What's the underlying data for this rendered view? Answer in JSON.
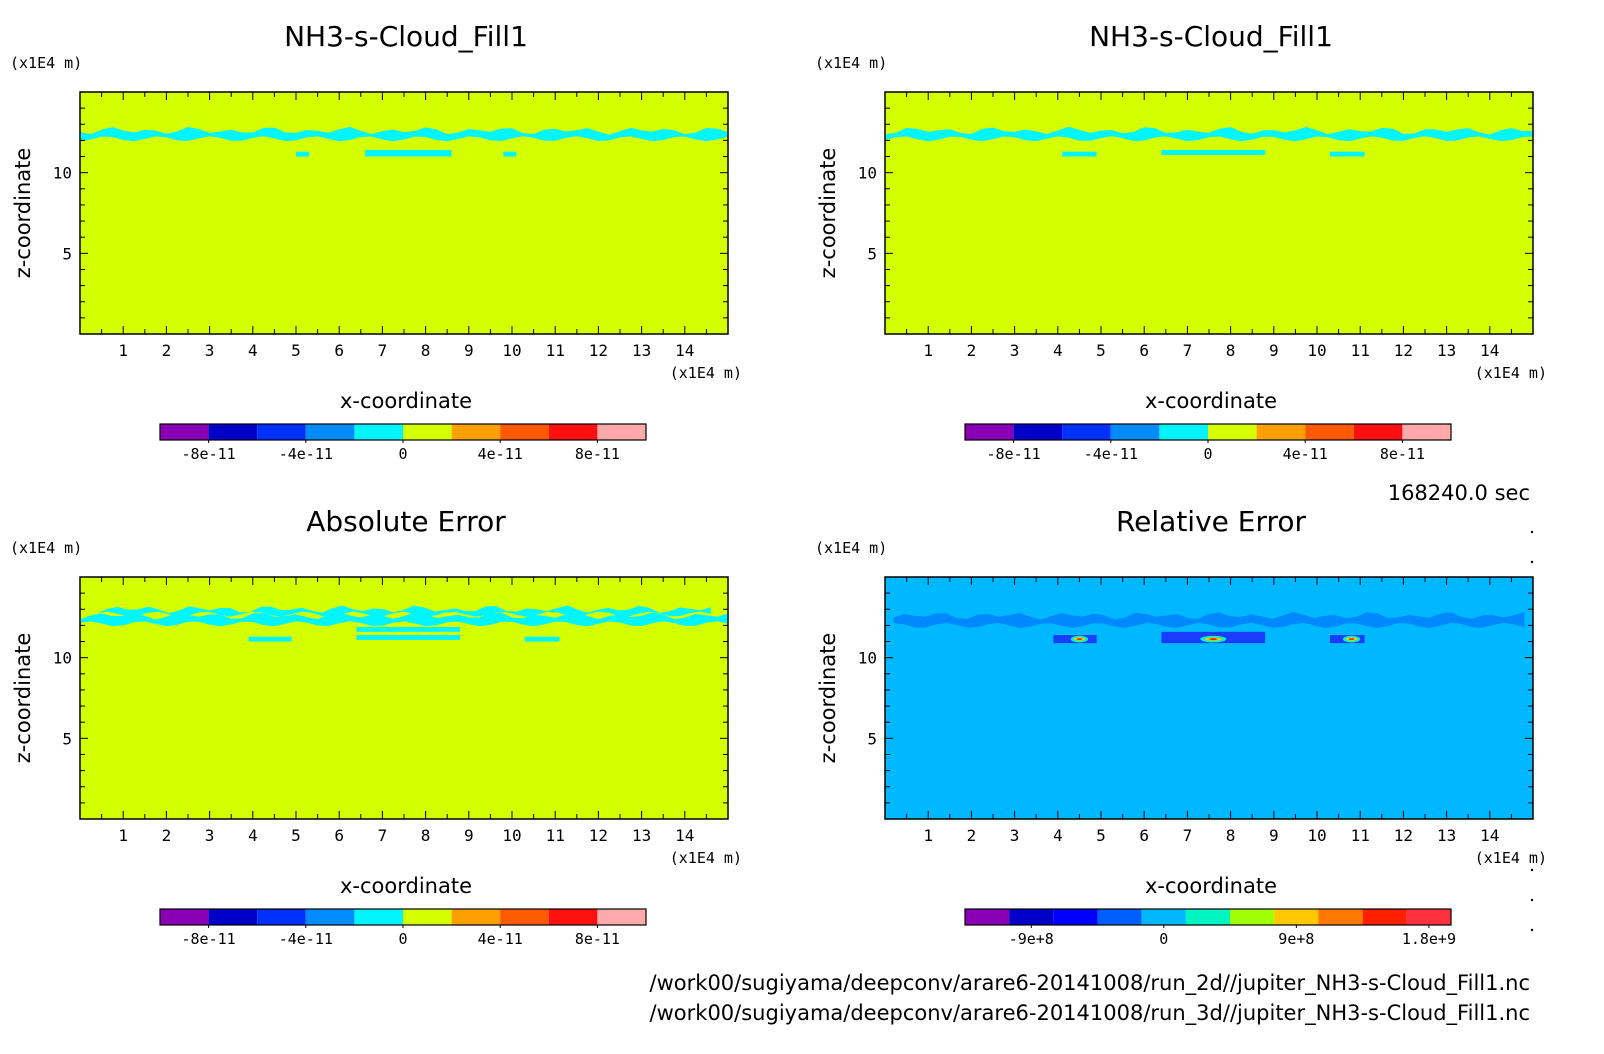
{
  "time_label": "168240.0 sec",
  "files": [
    "/work00/sugiyama/deepconv/arare6-20141008/run_2d//jupiter_NH3-s-Cloud_Fill1.nc",
    "/work00/sugiyama/deepconv/arare6-20141008/run_3d//jupiter_NH3-s-Cloud_Fill1.nc"
  ],
  "colors": {
    "field_background": "#d4ff00",
    "cloud_band": "#00f5ff",
    "relative_background": "#00b8ff",
    "relative_band": "#0088ff",
    "relative_deep": "#1a3cff"
  },
  "chart_data": [
    {
      "type": "heatmap",
      "title": "NH3-s-Cloud_Fill1",
      "xlabel": "x-coordinate",
      "ylabel": "z-coordinate",
      "xunit": "(x1E4 m)",
      "yunit": "(x1E4 m)",
      "xlim": [
        0,
        15
      ],
      "ylim": [
        0,
        15
      ],
      "xticks": [
        1,
        2,
        3,
        4,
        5,
        6,
        7,
        8,
        9,
        10,
        11,
        12,
        13,
        14
      ],
      "yticks": [
        5,
        10
      ],
      "background_value": "0",
      "features": [
        {
          "kind": "band",
          "x": [
            0,
            15
          ],
          "z": [
            12.1,
            12.6
          ]
        },
        {
          "kind": "patch",
          "x": [
            5.0,
            5.3
          ],
          "z": [
            11.0,
            11.3
          ]
        },
        {
          "kind": "patch",
          "x": [
            6.6,
            8.6
          ],
          "z": [
            11.0,
            11.4
          ]
        },
        {
          "kind": "patch",
          "x": [
            9.8,
            10.1
          ],
          "z": [
            11.0,
            11.3
          ]
        }
      ],
      "colorbar": {
        "boundaries": [
          -1e-10,
          -8e-11,
          -6e-11,
          -4e-11,
          -2e-11,
          0,
          2e-11,
          4e-11,
          6e-11,
          8e-11,
          1e-10
        ],
        "colors": [
          "#8a00b4",
          "#0000c8",
          "#0030ff",
          "#008cff",
          "#00f5ff",
          "#d4ff00",
          "#ffa000",
          "#ff5a00",
          "#ff1010",
          "#ffaaaa"
        ],
        "tick_values": [
          -8e-11,
          -4e-11,
          0,
          4e-11,
          8e-11
        ],
        "tick_labels": [
          "-8e-11",
          "-4e-11",
          "0",
          "4e-11",
          "8e-11"
        ]
      }
    },
    {
      "type": "heatmap",
      "title": "NH3-s-Cloud_Fill1",
      "xlabel": "x-coordinate",
      "ylabel": "z-coordinate",
      "xunit": "(x1E4 m)",
      "yunit": "(x1E4 m)",
      "xlim": [
        0,
        15
      ],
      "ylim": [
        0,
        15
      ],
      "xticks": [
        1,
        2,
        3,
        4,
        5,
        6,
        7,
        8,
        9,
        10,
        11,
        12,
        13,
        14
      ],
      "yticks": [
        5,
        10
      ],
      "background_value": "0",
      "features": [
        {
          "kind": "band",
          "x": [
            0,
            15
          ],
          "z": [
            12.1,
            12.6
          ]
        },
        {
          "kind": "patch",
          "x": [
            4.1,
            4.9
          ],
          "z": [
            11.0,
            11.3
          ]
        },
        {
          "kind": "patch",
          "x": [
            6.4,
            8.8
          ],
          "z": [
            11.1,
            11.4
          ]
        },
        {
          "kind": "patch",
          "x": [
            10.3,
            11.1
          ],
          "z": [
            11.0,
            11.3
          ]
        }
      ],
      "colorbar": {
        "boundaries": [
          -1e-10,
          -8e-11,
          -6e-11,
          -4e-11,
          -2e-11,
          0,
          2e-11,
          4e-11,
          6e-11,
          8e-11,
          1e-10
        ],
        "colors": [
          "#8a00b4",
          "#0000c8",
          "#0030ff",
          "#008cff",
          "#00f5ff",
          "#d4ff00",
          "#ffa000",
          "#ff5a00",
          "#ff1010",
          "#ffaaaa"
        ],
        "tick_values": [
          -8e-11,
          -4e-11,
          0,
          4e-11,
          8e-11
        ],
        "tick_labels": [
          "-8e-11",
          "-4e-11",
          "0",
          "4e-11",
          "8e-11"
        ]
      }
    },
    {
      "type": "heatmap",
      "title": "Absolute Error",
      "xlabel": "x-coordinate",
      "ylabel": "z-coordinate",
      "xunit": "(x1E4 m)",
      "yunit": "(x1E4 m)",
      "xlim": [
        0,
        15
      ],
      "ylim": [
        0,
        15
      ],
      "xticks": [
        1,
        2,
        3,
        4,
        5,
        6,
        7,
        8,
        9,
        10,
        11,
        12,
        13,
        14
      ],
      "yticks": [
        5,
        10
      ],
      "background_value": "0",
      "features": [
        {
          "kind": "band",
          "x": [
            0,
            15
          ],
          "z": [
            12.1,
            12.6
          ]
        },
        {
          "kind": "band",
          "x": [
            0.4,
            14.6
          ],
          "z": [
            12.7,
            13.0
          ]
        },
        {
          "kind": "patch",
          "x": [
            3.9,
            4.9
          ],
          "z": [
            11.0,
            11.3
          ]
        },
        {
          "kind": "patch",
          "x": [
            6.4,
            8.8
          ],
          "z": [
            11.1,
            11.4
          ]
        },
        {
          "kind": "patch",
          "x": [
            6.4,
            8.8
          ],
          "z": [
            11.6,
            11.9
          ]
        },
        {
          "kind": "patch",
          "x": [
            10.3,
            11.1
          ],
          "z": [
            11.0,
            11.3
          ]
        }
      ],
      "colorbar": {
        "boundaries": [
          -1e-10,
          -8e-11,
          -6e-11,
          -4e-11,
          -2e-11,
          0,
          2e-11,
          4e-11,
          6e-11,
          8e-11,
          1e-10
        ],
        "colors": [
          "#8a00b4",
          "#0000c8",
          "#0030ff",
          "#008cff",
          "#00f5ff",
          "#d4ff00",
          "#ffa000",
          "#ff5a00",
          "#ff1010",
          "#ffaaaa"
        ],
        "tick_values": [
          -8e-11,
          -4e-11,
          0,
          4e-11,
          8e-11
        ],
        "tick_labels": [
          "-8e-11",
          "-4e-11",
          "0",
          "4e-11",
          "8e-11"
        ]
      }
    },
    {
      "type": "heatmap",
      "title": "Relative Error",
      "xlabel": "x-coordinate",
      "ylabel": "z-coordinate",
      "xunit": "(x1E4 m)",
      "yunit": "(x1E4 m)",
      "xlim": [
        0,
        15
      ],
      "ylim": [
        0,
        15
      ],
      "xticks": [
        1,
        2,
        3,
        4,
        5,
        6,
        7,
        8,
        9,
        10,
        11,
        12,
        13,
        14
      ],
      "yticks": [
        5,
        10
      ],
      "background_value": "0",
      "features": [
        {
          "kind": "band",
          "x": [
            0.2,
            14.8
          ],
          "z": [
            12.0,
            12.6
          ]
        },
        {
          "kind": "patch",
          "x": [
            3.9,
            4.9
          ],
          "z": [
            10.9,
            11.4
          ]
        },
        {
          "kind": "patch",
          "x": [
            6.4,
            8.8
          ],
          "z": [
            10.9,
            11.6
          ]
        },
        {
          "kind": "patch",
          "x": [
            10.3,
            11.1
          ],
          "z": [
            10.9,
            11.4
          ]
        },
        {
          "kind": "peak",
          "x": [
            4.3,
            4.7
          ],
          "z": [
            11.0,
            11.3
          ]
        },
        {
          "kind": "peak",
          "x": [
            7.3,
            7.9
          ],
          "z": [
            11.0,
            11.3
          ]
        },
        {
          "kind": "peak",
          "x": [
            10.6,
            11.0
          ],
          "z": [
            11.0,
            11.3
          ]
        }
      ],
      "colorbar": {
        "boundaries": [
          -1350000000.0,
          -1050000000.0,
          -750000000.0,
          -450000000.0,
          -150000000.0,
          150000000.0,
          450000000.0,
          750000000.0,
          1050000000.0,
          1350000000.0,
          1650000000.0,
          1950000000.0
        ],
        "colors": [
          "#8a00b4",
          "#0000c8",
          "#0000ff",
          "#0060ff",
          "#00b8ff",
          "#00f5c0",
          "#a0ff00",
          "#ffc800",
          "#ff7800",
          "#ff2000",
          "#ff3040"
        ],
        "tick_values": [
          -900000000.0,
          0,
          900000000.0,
          1800000000.0
        ],
        "tick_labels": [
          "-9e+8",
          "0",
          "9e+8",
          "1.8e+9"
        ]
      }
    }
  ]
}
